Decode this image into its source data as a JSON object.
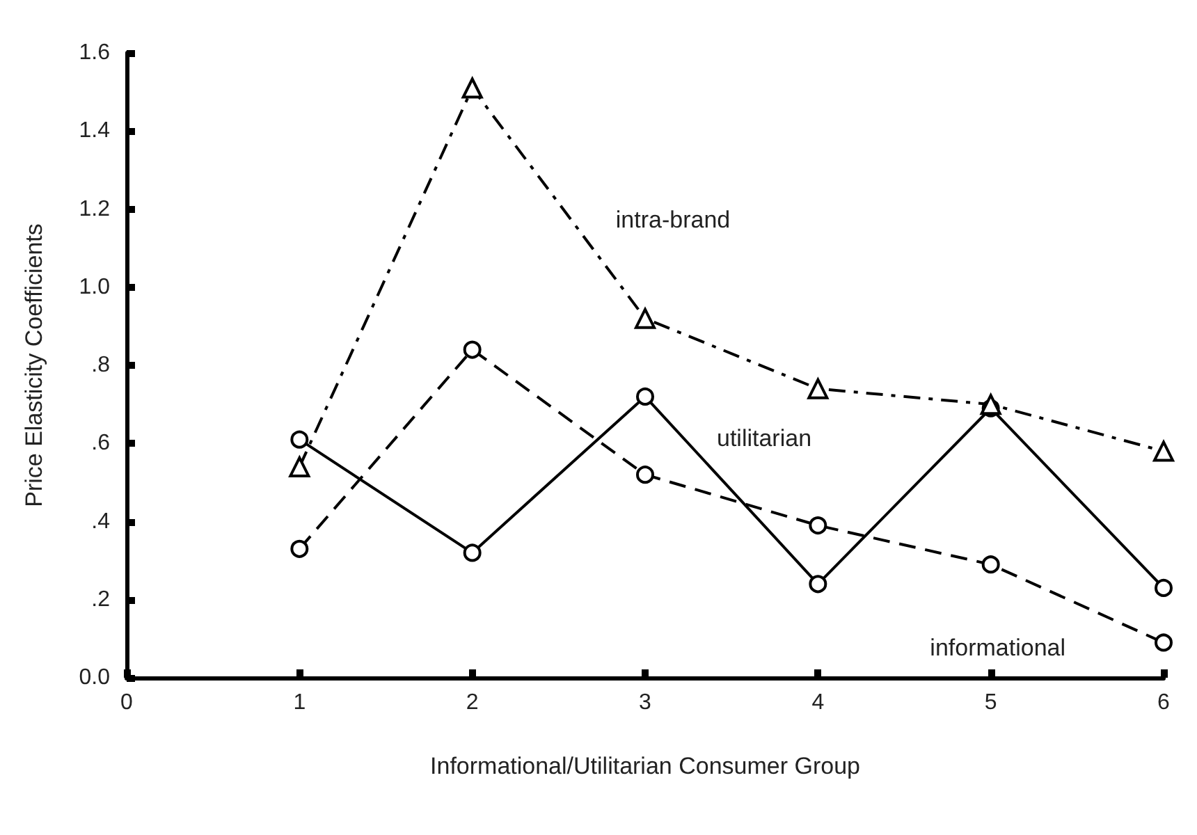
{
  "chart_data": {
    "type": "line",
    "xlabel": "Informational/Utilitarian Consumer Group",
    "ylabel": "Price Elasticity Coefficients",
    "x": [
      1,
      2,
      3,
      4,
      5,
      6
    ],
    "series": [
      {
        "name": "intra-brand",
        "color": "#000000",
        "values": [
          0.54,
          1.51,
          0.92,
          0.74,
          0.7,
          0.58
        ],
        "marker": "triangle",
        "line_style": "dashed"
      },
      {
        "name": "utilitarian",
        "color": "#000000",
        "values": [
          0.61,
          0.32,
          0.72,
          0.24,
          0.69,
          0.23
        ],
        "marker": "circle",
        "line_style": "solid"
      },
      {
        "name": "informational",
        "color": "#000000",
        "values": [
          0.33,
          0.84,
          0.52,
          0.39,
          0.29,
          0.09
        ],
        "marker": "circle",
        "line_style": "dashed"
      }
    ],
    "xlim": [
      0,
      6
    ],
    "xticks": [
      0,
      1,
      2,
      3,
      4,
      5,
      6
    ],
    "ylim": [
      0,
      1.6
    ],
    "yticks": [
      {
        "value": 0,
        "label": "0.0"
      },
      {
        "value": 0.2,
        "label": ".2"
      },
      {
        "value": 0.4,
        "label": ".4"
      },
      {
        "value": 0.6,
        "label": ".6"
      },
      {
        "value": 0.8,
        "label": ".8"
      },
      {
        "value": 1,
        "label": "1.0"
      },
      {
        "value": 1.2,
        "label": "1.2"
      },
      {
        "value": 1.4,
        "label": "1.4"
      },
      {
        "value": 1.6,
        "label": "1.6"
      }
    ],
    "grid": false,
    "legend": false
  }
}
